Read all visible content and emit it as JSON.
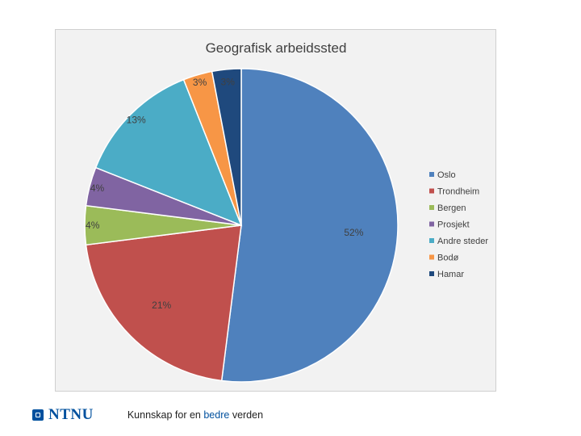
{
  "chart_data": {
    "type": "pie",
    "title": "Geografisk arbeidssted",
    "categories": [
      "Oslo",
      "Trondheim",
      "Bergen",
      "Prosjekt",
      "Andre steder",
      "Bodø",
      "Hamar"
    ],
    "values": [
      52,
      21,
      4,
      4,
      13,
      3,
      3
    ],
    "labels": [
      "52%",
      "21%",
      "4%",
      "4%",
      "13%",
      "3%",
      "3%"
    ],
    "colors": [
      "#4f81bd",
      "#c0504d",
      "#9bbb59",
      "#8064a2",
      "#4bacc6",
      "#f79646",
      "#1f497d"
    ],
    "legend_position": "right",
    "start_angle": "12 o'clock",
    "direction": "clockwise"
  },
  "footer": {
    "logo_text": "NTNU",
    "tagline_1": "Kunnskap for en ",
    "tagline_accent": "bedre",
    "tagline_2": " verden"
  }
}
